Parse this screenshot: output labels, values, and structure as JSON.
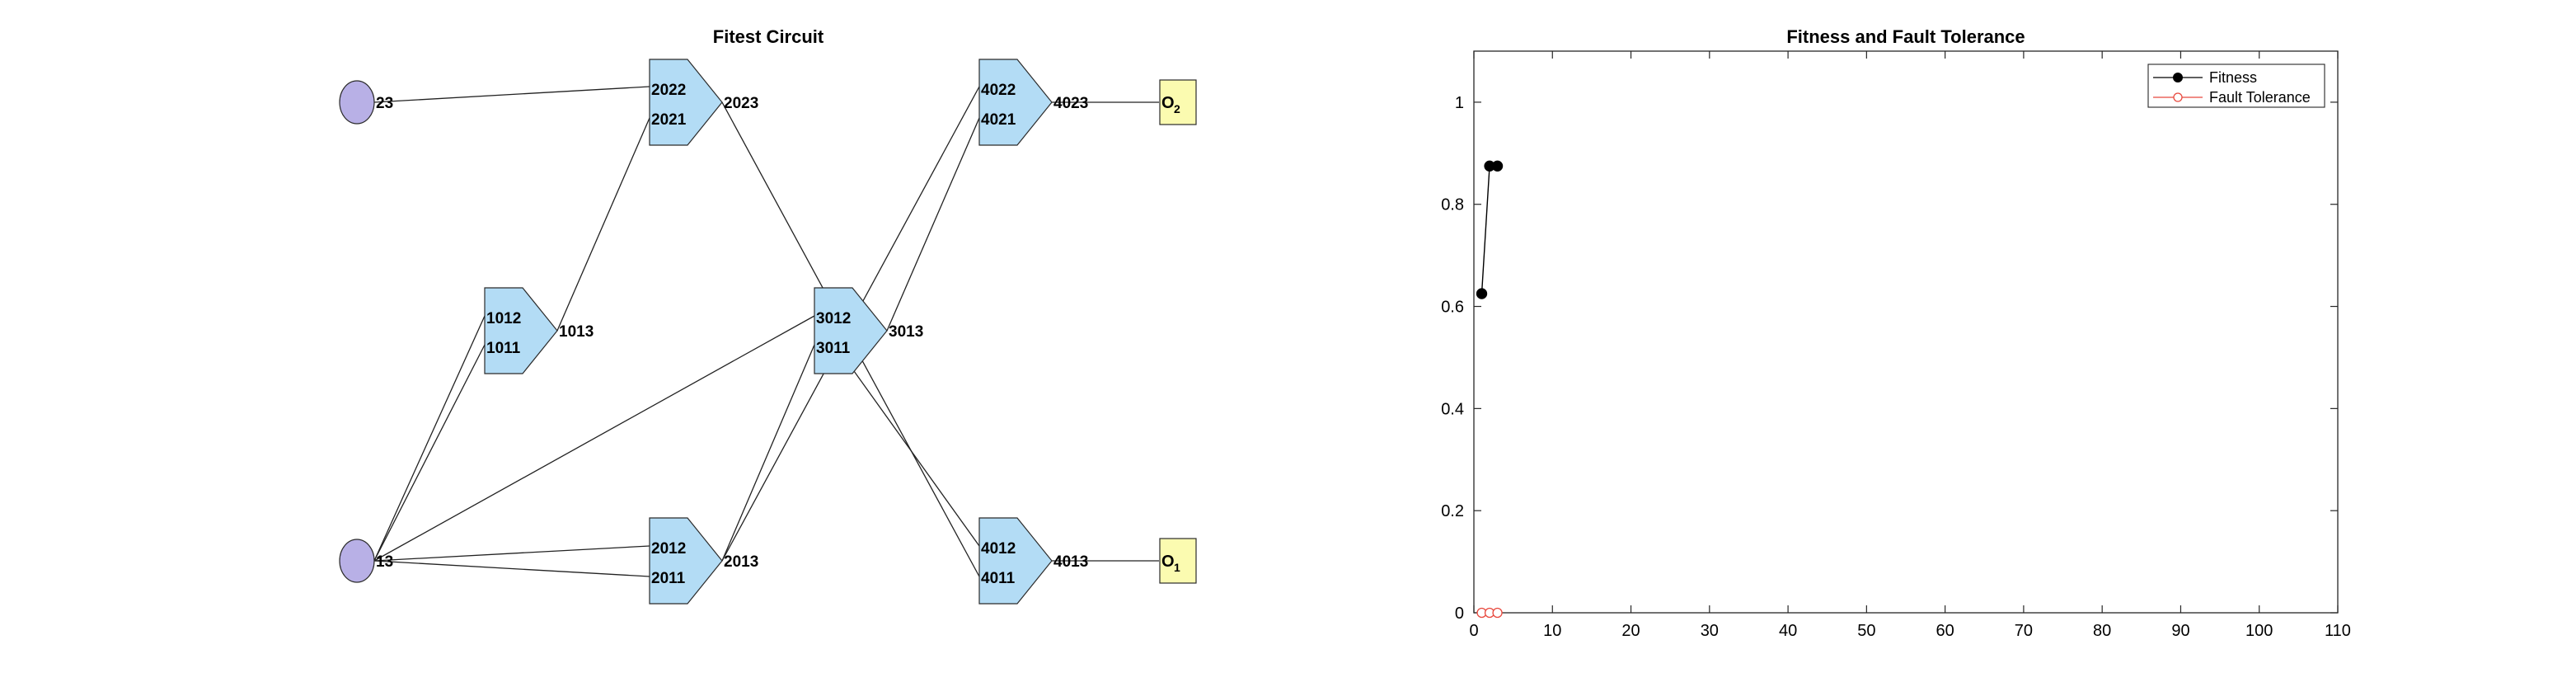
{
  "circuit": {
    "title": "Fitest Circuit",
    "inputs": [
      {
        "id": "in23",
        "label": "23"
      },
      {
        "id": "in13",
        "label": "13"
      }
    ],
    "gates": [
      {
        "id": "g101",
        "in1": "1012",
        "in2": "1011",
        "out": "1013"
      },
      {
        "id": "g201",
        "in1": "2012",
        "in2": "2011",
        "out": "2013"
      },
      {
        "id": "g202",
        "in1": "2022",
        "in2": "2021",
        "out": "2023"
      },
      {
        "id": "g301",
        "in1": "3012",
        "in2": "3011",
        "out": "3013"
      },
      {
        "id": "g401",
        "in1": "4012",
        "in2": "4011",
        "out": "4013"
      },
      {
        "id": "g402",
        "in1": "4022",
        "in2": "4021",
        "out": "4023"
      }
    ],
    "outputs": [
      {
        "id": "o2",
        "label": "O",
        "sub": "2"
      },
      {
        "id": "o1",
        "label": "O",
        "sub": "1"
      }
    ],
    "colors": {
      "gate": "#b3dcf5",
      "input": "#b8b0e6",
      "output": "#fbfbb0"
    }
  },
  "chart_data": {
    "type": "line",
    "title": "Fitness and Fault Tolerance",
    "xlabel": "",
    "ylabel": "",
    "xlim": [
      0,
      110
    ],
    "ylim": [
      0,
      1.1
    ],
    "xticks": [
      "0",
      "10",
      "20",
      "30",
      "40",
      "50",
      "60",
      "70",
      "80",
      "90",
      "100",
      "110"
    ],
    "yticks": [
      "0",
      "0.2",
      "0.4",
      "0.6",
      "0.8",
      "1"
    ],
    "grid": false,
    "legend": "top-right",
    "series": [
      {
        "name": "Fitness",
        "color": "#000000",
        "marker": "filled-circle",
        "x": [
          1,
          2,
          3
        ],
        "values": [
          0.625,
          0.875,
          0.875
        ]
      },
      {
        "name": "Fault Tolerance",
        "color": "#e8493e",
        "marker": "open-circle",
        "x": [
          1,
          2,
          3
        ],
        "values": [
          0,
          0,
          0
        ]
      }
    ]
  }
}
